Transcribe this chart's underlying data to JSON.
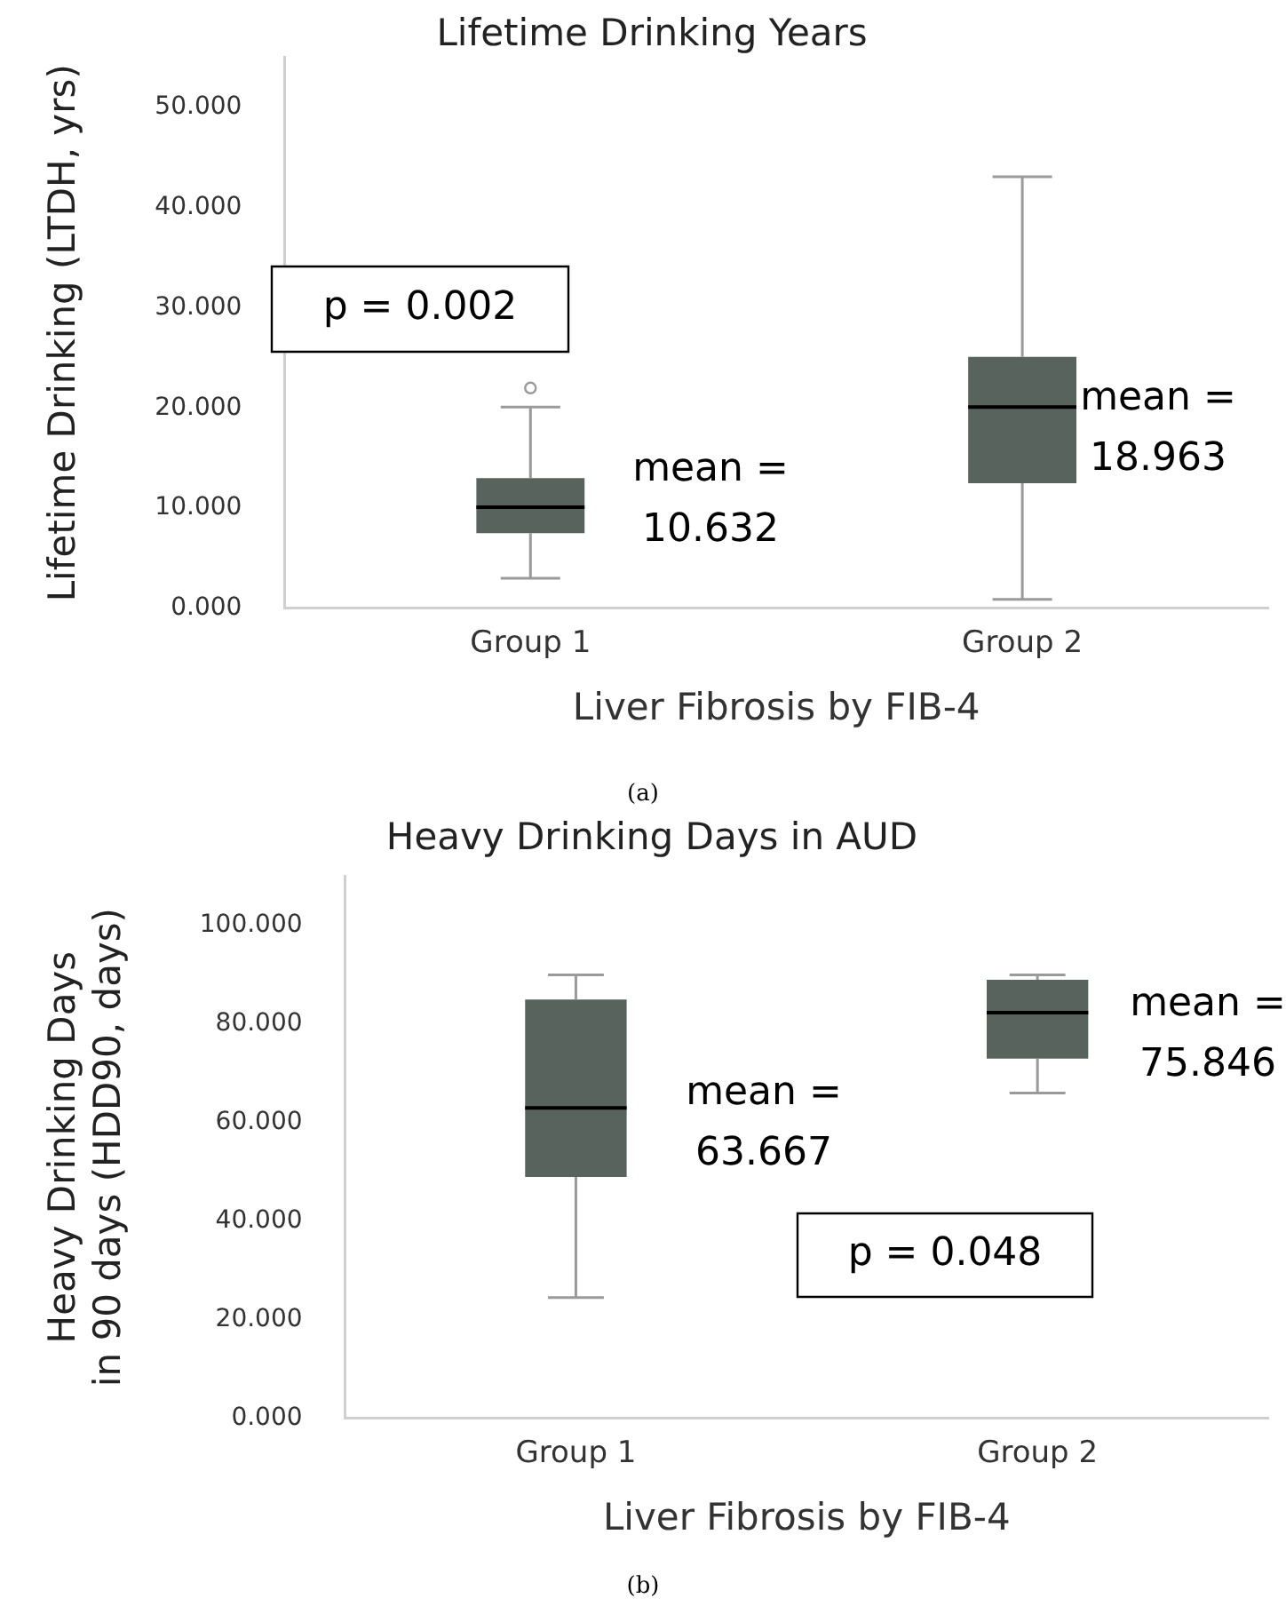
{
  "chart_data": [
    {
      "type": "box",
      "title": "Lifetime Drinking Years",
      "xlabel": "Liver Fibrosis by FIB-4",
      "ylabel": "Lifetime Drinking (LTDH, yrs)",
      "categories": [
        "Group 1",
        "Group 2"
      ],
      "color": "#59635e",
      "boxes": [
        {
          "low": 3.0,
          "q1": 7.5,
          "median": 10.1,
          "q3": 13.0,
          "high": 20.1,
          "outliers": [
            22.0
          ]
        },
        {
          "low": 0.9,
          "q1": 12.5,
          "median": 20.1,
          "q3": 25.1,
          "high": 43.1
        }
      ],
      "ylim": [
        0,
        55
      ],
      "yticks": [
        {
          "value": 0,
          "label": "0.000"
        },
        {
          "value": 10,
          "label": "10.000"
        },
        {
          "value": 20,
          "label": "20.000"
        },
        {
          "value": 30,
          "label": "30.000"
        },
        {
          "value": 40,
          "label": "40.000"
        },
        {
          "value": 50,
          "label": "50.000"
        }
      ],
      "grid": false,
      "annotations": [
        "p = 0.002",
        "mean = 10.632",
        "mean = 18.963",
        "(a)"
      ]
    },
    {
      "type": "box",
      "title": "Heavy Drinking Days in AUD",
      "xlabel": "Liver Fibrosis by FIB-4",
      "ylabel": "Heavy Drinking Days in 90 days (HDD90, days)",
      "categories": [
        "Group 1",
        "Group 2"
      ],
      "color": "#59635e",
      "boxes": [
        {
          "low": 24.5,
          "q1": 49,
          "median": 63,
          "q3": 85,
          "high": 90
        },
        {
          "low": 66,
          "q1": 73,
          "median": 82.3,
          "q3": 89,
          "high": 90
        }
      ],
      "ylim": [
        0,
        110
      ],
      "yticks": [
        {
          "value": 0,
          "label": "0.000"
        },
        {
          "value": 20,
          "label": "20.000"
        },
        {
          "value": 40,
          "label": "40.000"
        },
        {
          "value": 60,
          "label": "60.000"
        },
        {
          "value": 80,
          "label": "80.000"
        },
        {
          "value": 100,
          "label": "100.000"
        }
      ],
      "grid": false,
      "annotations": [
        "mean = 63.667",
        "mean = 75.846",
        "p = 0.048",
        "(b)"
      ]
    }
  ]
}
